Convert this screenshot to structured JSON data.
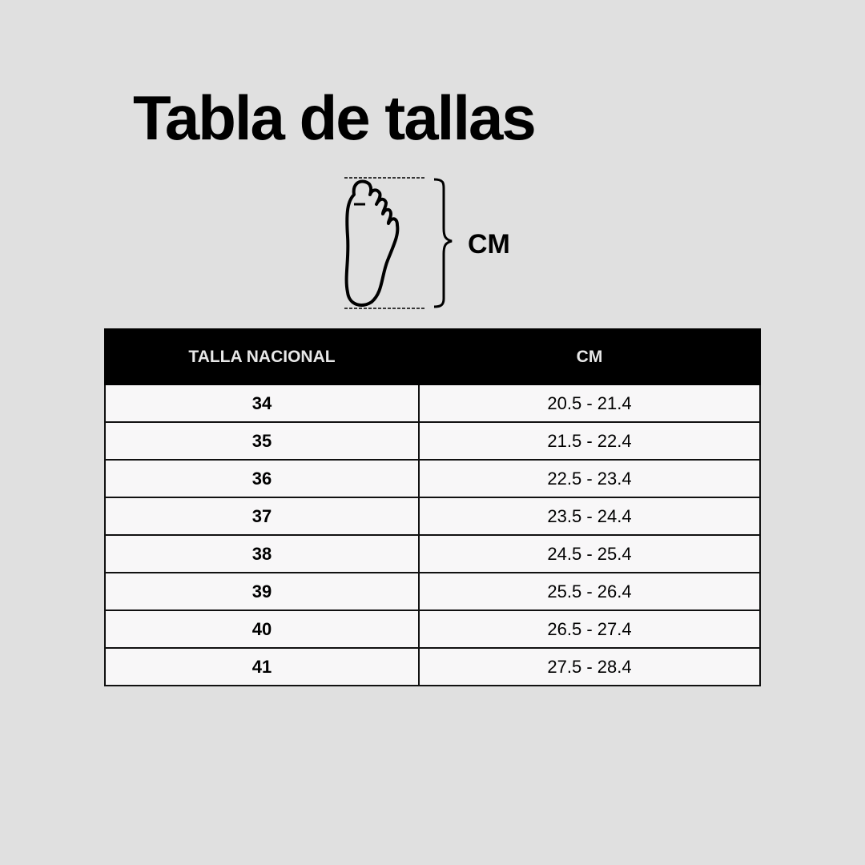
{
  "title": "Tabla de tallas",
  "diagram": {
    "icon": "foot-length-icon",
    "unit_label": "CM"
  },
  "table": {
    "headers": [
      "TALLA NACIONAL",
      "CM"
    ],
    "rows": [
      {
        "size": "34",
        "cm": "20.5 - 21.4"
      },
      {
        "size": "35",
        "cm": "21.5 - 22.4"
      },
      {
        "size": "36",
        "cm": "22.5 - 23.4"
      },
      {
        "size": "37",
        "cm": "23.5 - 24.4"
      },
      {
        "size": "38",
        "cm": "24.5 - 25.4"
      },
      {
        "size": "39",
        "cm": "25.5 - 26.4"
      },
      {
        "size": "40",
        "cm": "26.5 - 27.4"
      },
      {
        "size": "41",
        "cm": "27.5 - 28.4"
      }
    ]
  },
  "colors": {
    "background": "#e0e0e0",
    "header": "#000000",
    "cell": "#f8f7f8"
  }
}
